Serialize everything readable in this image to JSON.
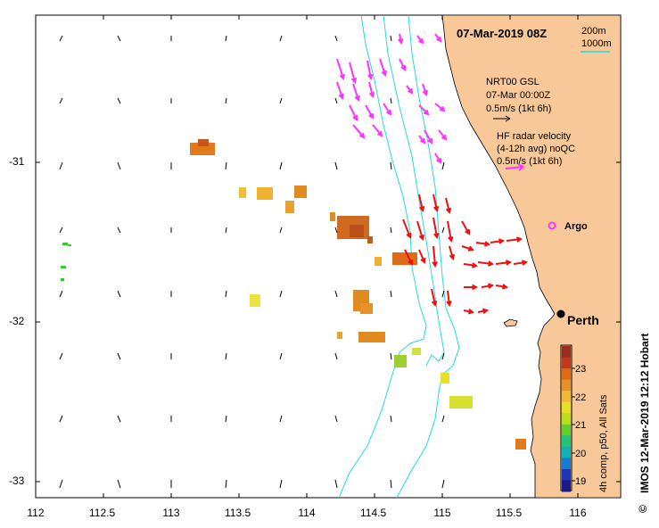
{
  "title": "07-Mar-2019 08Z",
  "depth_legend": {
    "c200": "200m",
    "c1000": "1000m"
  },
  "vector_legend": {
    "model_title": "NRT00 GSL",
    "model_time": "07-Mar 00:00Z",
    "model_scale": "0.5m/s (1kt 6h)",
    "radar_title": "HF radar velocity",
    "radar_sub": "(4-12h avg) noQC",
    "radar_scale": "0.5m/s (1kt 6h)"
  },
  "argo_label": "Argo",
  "city_label": "Perth",
  "credit": "IMOS 12-Mar-2019 12:12 Hobart",
  "copyright": "©",
  "colorbar": {
    "caption": "4h comp, p50, All Sats",
    "ticks": [
      "23",
      "22",
      "21",
      "20",
      "19"
    ],
    "range": [
      18.8,
      24
    ]
  },
  "axes": {
    "x_ticks": [
      "112",
      "112.5",
      "113",
      "113.5",
      "114",
      "114.5",
      "115",
      "115.5",
      "116"
    ],
    "y_ticks": [
      "-31",
      "-32",
      "-33"
    ]
  },
  "colors": {
    "land": "#f8c898",
    "contour": "#22dddd",
    "radar_offshore": "#ff33ff",
    "radar_inshore": "#ee1111",
    "model": "#000000"
  }
}
